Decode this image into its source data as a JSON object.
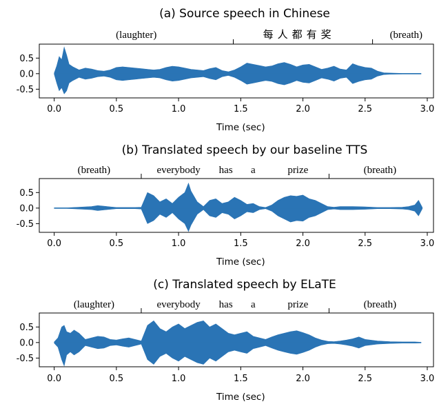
{
  "chart_data": [
    {
      "type": "line",
      "title": "(a) Source speech in Chinese",
      "xlabel": "Time (sec)",
      "ylabel": "",
      "xlim": [
        -0.12,
        3.05
      ],
      "ylim": [
        -0.78,
        0.95
      ],
      "xticks": [
        0.0,
        0.5,
        1.0,
        1.5,
        2.0,
        2.5,
        3.0
      ],
      "xtick_labels": [
        "0.0",
        "0.5",
        "1.0",
        "1.5",
        "2.0",
        "2.5",
        "3.0"
      ],
      "yticks": [
        0.5,
        0.0,
        -0.5
      ],
      "ytick_labels": [
        "0.5",
        "0.0",
        "-0.5"
      ],
      "grid": false,
      "annotations": [
        {
          "text": "(laughter)",
          "x": 0.66,
          "cjk": false
        },
        {
          "text": "每人都有奖",
          "x": 1.97,
          "cjk": true
        },
        {
          "text": "(breath)",
          "x": 2.83,
          "cjk": false
        }
      ],
      "dividers": [
        1.44,
        2.56
      ],
      "series": [
        {
          "time_sec": [
            0.0,
            0.02,
            0.04,
            0.06,
            0.08,
            0.1,
            0.12,
            0.15,
            0.2,
            0.25,
            0.3,
            0.35,
            0.4,
            0.45,
            0.5,
            0.55,
            0.6,
            0.65,
            0.7,
            0.75,
            0.8,
            0.85,
            0.9,
            0.95,
            1.0,
            1.05,
            1.1,
            1.15,
            1.2,
            1.25,
            1.3,
            1.35,
            1.4,
            1.45,
            1.5,
            1.55,
            1.6,
            1.65,
            1.7,
            1.75,
            1.8,
            1.85,
            1.9,
            1.95,
            2.0,
            2.05,
            2.1,
            2.15,
            2.2,
            2.25,
            2.3,
            2.35,
            2.4,
            2.45,
            2.5,
            2.55,
            2.6,
            2.65,
            2.7,
            2.8,
            2.9,
            2.95
          ],
          "upper": [
            0.02,
            0.25,
            0.55,
            0.45,
            0.85,
            0.6,
            0.3,
            0.22,
            0.12,
            0.18,
            0.15,
            0.1,
            0.08,
            0.12,
            0.2,
            0.22,
            0.2,
            0.18,
            0.16,
            0.14,
            0.12,
            0.14,
            0.2,
            0.24,
            0.22,
            0.18,
            0.14,
            0.12,
            0.1,
            0.16,
            0.2,
            0.1,
            0.06,
            0.12,
            0.22,
            0.34,
            0.3,
            0.26,
            0.22,
            0.25,
            0.32,
            0.36,
            0.3,
            0.22,
            0.28,
            0.3,
            0.22,
            0.14,
            0.18,
            0.24,
            0.15,
            0.12,
            0.32,
            0.25,
            0.2,
            0.18,
            0.08,
            0.03,
            0.02,
            0.01,
            0.01,
            0.01
          ],
          "lower": [
            -0.02,
            -0.3,
            -0.55,
            -0.45,
            -0.65,
            -0.55,
            -0.3,
            -0.22,
            -0.12,
            -0.18,
            -0.15,
            -0.1,
            -0.08,
            -0.12,
            -0.2,
            -0.22,
            -0.2,
            -0.18,
            -0.16,
            -0.14,
            -0.12,
            -0.14,
            -0.2,
            -0.24,
            -0.22,
            -0.18,
            -0.14,
            -0.12,
            -0.1,
            -0.16,
            -0.2,
            -0.1,
            -0.06,
            -0.12,
            -0.22,
            -0.34,
            -0.3,
            -0.26,
            -0.22,
            -0.25,
            -0.32,
            -0.36,
            -0.3,
            -0.22,
            -0.28,
            -0.3,
            -0.22,
            -0.14,
            -0.18,
            -0.24,
            -0.15,
            -0.12,
            -0.32,
            -0.25,
            -0.2,
            -0.18,
            -0.08,
            -0.03,
            -0.02,
            -0.01,
            -0.01,
            -0.01
          ]
        }
      ]
    },
    {
      "type": "line",
      "title": "(b) Translated speech by our baseline TTS",
      "xlabel": "Time (sec)",
      "ylabel": "",
      "xlim": [
        -0.12,
        3.05
      ],
      "ylim": [
        -0.78,
        0.95
      ],
      "xticks": [
        0.0,
        0.5,
        1.0,
        1.5,
        2.0,
        2.5,
        3.0
      ],
      "xtick_labels": [
        "0.0",
        "0.5",
        "1.0",
        "1.5",
        "2.0",
        "2.5",
        "3.0"
      ],
      "yticks": [
        0.5,
        0.0,
        -0.5
      ],
      "ytick_labels": [
        "0.5",
        "0.0",
        "-0.5"
      ],
      "grid": false,
      "annotations": [
        {
          "text": "(breath)",
          "x": 0.32,
          "cjk": false
        },
        {
          "text": "everybody",
          "x": 1.0,
          "cjk": false
        },
        {
          "text": "has",
          "x": 1.38,
          "cjk": false
        },
        {
          "text": "a",
          "x": 1.6,
          "cjk": false
        },
        {
          "text": "prize",
          "x": 1.96,
          "cjk": false
        },
        {
          "text": "(breath)",
          "x": 2.62,
          "cjk": false
        }
      ],
      "dividers": [
        0.7,
        2.21
      ],
      "series": [
        {
          "time_sec": [
            0.0,
            0.1,
            0.2,
            0.3,
            0.35,
            0.4,
            0.45,
            0.5,
            0.55,
            0.6,
            0.65,
            0.7,
            0.75,
            0.8,
            0.85,
            0.9,
            0.95,
            1.0,
            1.05,
            1.08,
            1.1,
            1.15,
            1.2,
            1.25,
            1.3,
            1.35,
            1.4,
            1.45,
            1.5,
            1.55,
            1.6,
            1.65,
            1.7,
            1.75,
            1.8,
            1.85,
            1.9,
            1.95,
            2.0,
            2.05,
            2.1,
            2.15,
            2.2,
            2.25,
            2.3,
            2.4,
            2.5,
            2.6,
            2.7,
            2.8,
            2.85,
            2.9,
            2.93,
            2.96
          ],
          "upper": [
            0.01,
            0.01,
            0.03,
            0.05,
            0.08,
            0.06,
            0.04,
            0.02,
            0.02,
            0.02,
            0.02,
            0.03,
            0.5,
            0.4,
            0.2,
            0.3,
            0.15,
            0.35,
            0.5,
            0.8,
            0.55,
            0.2,
            0.05,
            0.25,
            0.3,
            0.15,
            0.2,
            0.35,
            0.25,
            0.12,
            0.15,
            0.05,
            0.02,
            0.1,
            0.25,
            0.35,
            0.4,
            0.38,
            0.42,
            0.3,
            0.25,
            0.15,
            0.05,
            0.03,
            0.05,
            0.05,
            0.04,
            0.02,
            0.02,
            0.03,
            0.05,
            0.1,
            0.25,
            0.02
          ],
          "lower": [
            -0.01,
            -0.01,
            -0.03,
            -0.05,
            -0.08,
            -0.06,
            -0.04,
            -0.02,
            -0.02,
            -0.02,
            -0.02,
            -0.03,
            -0.5,
            -0.4,
            -0.2,
            -0.3,
            -0.15,
            -0.35,
            -0.5,
            -0.75,
            -0.55,
            -0.2,
            -0.05,
            -0.25,
            -0.3,
            -0.15,
            -0.2,
            -0.35,
            -0.25,
            -0.12,
            -0.15,
            -0.05,
            -0.02,
            -0.1,
            -0.25,
            -0.35,
            -0.45,
            -0.4,
            -0.42,
            -0.3,
            -0.25,
            -0.15,
            -0.05,
            -0.03,
            -0.05,
            -0.05,
            -0.04,
            -0.02,
            -0.02,
            -0.03,
            -0.05,
            -0.1,
            -0.25,
            -0.02
          ]
        }
      ]
    },
    {
      "type": "line",
      "title": "(c) Translated speech by ELaTE",
      "xlabel": "Time (sec)",
      "ylabel": "",
      "xlim": [
        -0.12,
        3.05
      ],
      "ylim": [
        -0.78,
        0.95
      ],
      "xticks": [
        0.0,
        0.5,
        1.0,
        1.5,
        2.0,
        2.5,
        3.0
      ],
      "xtick_labels": [
        "0.0",
        "0.5",
        "1.0",
        "1.5",
        "2.0",
        "2.5",
        "3.0"
      ],
      "yticks": [
        0.5,
        0.0,
        -0.5
      ],
      "ytick_labels": [
        "0.5",
        "0.0",
        "-0.5"
      ],
      "grid": false,
      "annotations": [
        {
          "text": "(laughter)",
          "x": 0.32,
          "cjk": false
        },
        {
          "text": "everybody",
          "x": 1.0,
          "cjk": false
        },
        {
          "text": "has",
          "x": 1.38,
          "cjk": false
        },
        {
          "text": "a",
          "x": 1.6,
          "cjk": false
        },
        {
          "text": "prize",
          "x": 1.96,
          "cjk": false
        },
        {
          "text": "(breath)",
          "x": 2.62,
          "cjk": false
        }
      ],
      "dividers": [
        0.7,
        2.21
      ],
      "series": [
        {
          "time_sec": [
            0.0,
            0.03,
            0.06,
            0.08,
            0.1,
            0.13,
            0.16,
            0.2,
            0.25,
            0.3,
            0.35,
            0.4,
            0.45,
            0.5,
            0.55,
            0.6,
            0.65,
            0.7,
            0.75,
            0.8,
            0.85,
            0.9,
            0.95,
            1.0,
            1.05,
            1.1,
            1.15,
            1.2,
            1.25,
            1.3,
            1.35,
            1.4,
            1.45,
            1.5,
            1.55,
            1.6,
            1.65,
            1.7,
            1.75,
            1.8,
            1.85,
            1.9,
            1.95,
            2.0,
            2.05,
            2.1,
            2.15,
            2.2,
            2.25,
            2.3,
            2.35,
            2.4,
            2.45,
            2.5,
            2.6,
            2.7,
            2.8,
            2.9,
            2.95
          ],
          "upper": [
            0.02,
            0.15,
            0.5,
            0.55,
            0.35,
            0.3,
            0.4,
            0.3,
            0.1,
            0.15,
            0.2,
            0.18,
            0.1,
            0.08,
            0.12,
            0.15,
            0.1,
            0.05,
            0.55,
            0.7,
            0.45,
            0.35,
            0.5,
            0.6,
            0.45,
            0.55,
            0.65,
            0.7,
            0.5,
            0.6,
            0.45,
            0.3,
            0.25,
            0.3,
            0.35,
            0.2,
            0.15,
            0.1,
            0.18,
            0.25,
            0.3,
            0.35,
            0.38,
            0.32,
            0.25,
            0.15,
            0.08,
            0.04,
            0.03,
            0.05,
            0.08,
            0.12,
            0.18,
            0.1,
            0.05,
            0.03,
            0.02,
            0.02,
            0.01
          ],
          "lower": [
            -0.02,
            -0.15,
            -0.55,
            -0.75,
            -0.4,
            -0.3,
            -0.4,
            -0.3,
            -0.1,
            -0.15,
            -0.2,
            -0.18,
            -0.1,
            -0.08,
            -0.12,
            -0.15,
            -0.1,
            -0.05,
            -0.55,
            -0.7,
            -0.45,
            -0.35,
            -0.5,
            -0.6,
            -0.45,
            -0.55,
            -0.65,
            -0.7,
            -0.5,
            -0.6,
            -0.45,
            -0.3,
            -0.25,
            -0.3,
            -0.35,
            -0.2,
            -0.15,
            -0.1,
            -0.18,
            -0.25,
            -0.3,
            -0.35,
            -0.38,
            -0.32,
            -0.25,
            -0.15,
            -0.08,
            -0.04,
            -0.03,
            -0.05,
            -0.08,
            -0.12,
            -0.18,
            -0.1,
            -0.05,
            -0.03,
            -0.02,
            -0.02,
            -0.01
          ]
        }
      ]
    }
  ],
  "colors": {
    "waveform": "#2a74b5",
    "axis": "#000000",
    "background": "#ffffff"
  }
}
